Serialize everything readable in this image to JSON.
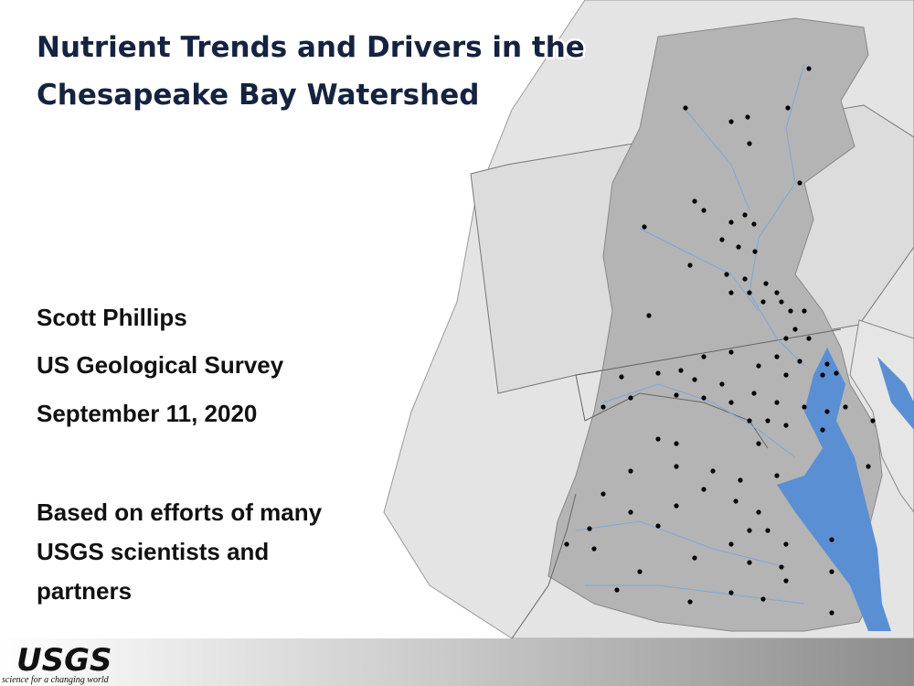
{
  "slide": {
    "title": [
      "Nutrient Trends and Drivers in the",
      "Chesapeake Bay Watershed"
    ],
    "author": "Scott Phillips",
    "organization": "US Geological Survey",
    "date": "September 11, 2020",
    "note": [
      "Based on efforts of many",
      "USGS scientists and",
      "partners"
    ]
  },
  "footer": {
    "logo": "USGS",
    "tagline": "science for a changing world"
  }
}
